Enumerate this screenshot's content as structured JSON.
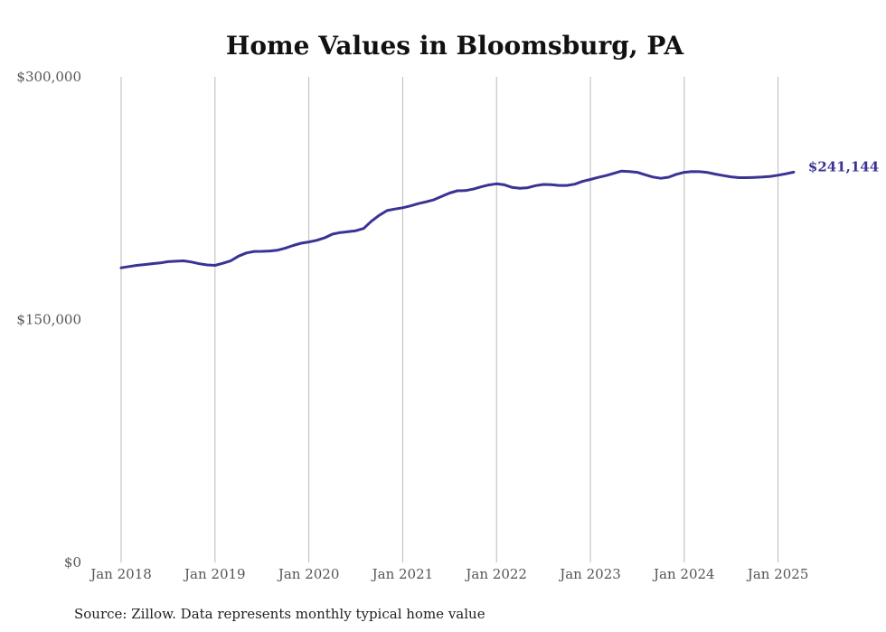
{
  "chart_data": {
    "type": "line",
    "title": "Home Values in Bloomsburg, PA",
    "xlabel": "",
    "ylabel": "",
    "ylim": [
      0,
      300000
    ],
    "y_ticks": [
      {
        "value": 0,
        "label": "$0"
      },
      {
        "value": 150000,
        "label": "$150,000"
      },
      {
        "value": 300000,
        "label": "$300,000"
      }
    ],
    "x_ticks": [
      {
        "date": "2018-01",
        "label": "Jan 2018"
      },
      {
        "date": "2019-01",
        "label": "Jan 2019"
      },
      {
        "date": "2020-01",
        "label": "Jan 2020"
      },
      {
        "date": "2021-01",
        "label": "Jan 2021"
      },
      {
        "date": "2022-01",
        "label": "Jan 2022"
      },
      {
        "date": "2023-01",
        "label": "Jan 2023"
      },
      {
        "date": "2024-01",
        "label": "Jan 2024"
      },
      {
        "date": "2025-01",
        "label": "Jan 2025"
      }
    ],
    "grid": {
      "vertical": true,
      "horizontal": false
    },
    "line_color": "#3a3394",
    "end_label": "$241,144",
    "x": [
      "2018-01",
      "2018-02",
      "2018-03",
      "2018-04",
      "2018-05",
      "2018-06",
      "2018-07",
      "2018-08",
      "2018-09",
      "2018-10",
      "2018-11",
      "2018-12",
      "2019-01",
      "2019-02",
      "2019-03",
      "2019-04",
      "2019-05",
      "2019-06",
      "2019-07",
      "2019-08",
      "2019-09",
      "2019-10",
      "2019-11",
      "2019-12",
      "2020-01",
      "2020-02",
      "2020-03",
      "2020-04",
      "2020-05",
      "2020-06",
      "2020-07",
      "2020-08",
      "2020-09",
      "2020-10",
      "2020-11",
      "2020-12",
      "2021-01",
      "2021-02",
      "2021-03",
      "2021-04",
      "2021-05",
      "2021-06",
      "2021-07",
      "2021-08",
      "2021-09",
      "2021-10",
      "2021-11",
      "2021-12",
      "2022-01",
      "2022-02",
      "2022-03",
      "2022-04",
      "2022-05",
      "2022-06",
      "2022-07",
      "2022-08",
      "2022-09",
      "2022-10",
      "2022-11",
      "2022-12",
      "2023-01",
      "2023-02",
      "2023-03",
      "2023-04",
      "2023-05",
      "2023-06",
      "2023-07",
      "2023-08",
      "2023-09",
      "2023-10",
      "2023-11",
      "2023-12",
      "2024-01",
      "2024-02",
      "2024-03",
      "2024-04",
      "2024-05",
      "2024-06",
      "2024-07",
      "2024-08",
      "2024-09",
      "2024-10",
      "2024-11",
      "2024-12",
      "2025-01",
      "2025-02",
      "2025-03"
    ],
    "series": [
      {
        "values": [
          182000,
          182800,
          183500,
          184000,
          184600,
          185000,
          185800,
          186100,
          186300,
          185600,
          184500,
          183800,
          183500,
          184800,
          186300,
          189200,
          191200,
          192100,
          192200,
          192400,
          192900,
          194200,
          195800,
          197200,
          198000,
          199000,
          200500,
          202800,
          203800,
          204300,
          204900,
          206300,
          210800,
          214400,
          217400,
          218300,
          219100,
          220300,
          221700,
          222800,
          224100,
          226200,
          228200,
          229600,
          229700,
          230600,
          232000,
          233200,
          233900,
          233300,
          231700,
          231100,
          231500,
          232800,
          233500,
          233400,
          232900,
          232900,
          233700,
          235400,
          236600,
          237900,
          239000,
          240400,
          241800,
          241500,
          241000,
          239500,
          238100,
          237300,
          238000,
          239800,
          241000,
          241500,
          241400,
          240900,
          239900,
          239000,
          238200,
          237700,
          237700,
          237900,
          238100,
          238500,
          239200,
          240100,
          241144
        ]
      }
    ]
  },
  "footer": {
    "source": "Source: Zillow. Data represents monthly typical home value"
  }
}
